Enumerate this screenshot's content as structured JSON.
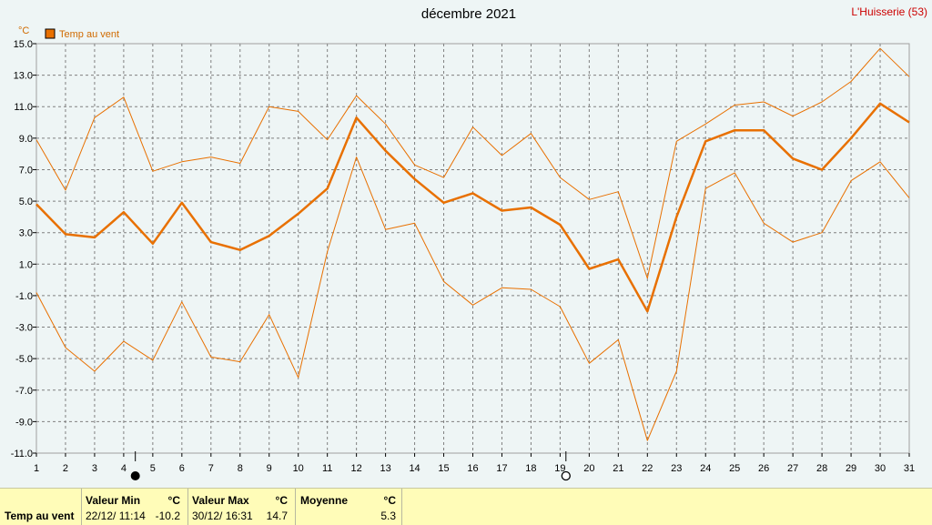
{
  "header": {
    "title": "décembre 2021",
    "location": "L'Huisserie (53)"
  },
  "chart_data": {
    "type": "line",
    "title": "décembre 2021",
    "unit": "°C",
    "legend": "Temp au vent",
    "x": [
      1,
      2,
      3,
      4,
      5,
      6,
      7,
      8,
      9,
      10,
      11,
      12,
      13,
      14,
      15,
      16,
      17,
      18,
      19,
      20,
      21,
      22,
      23,
      24,
      25,
      26,
      27,
      28,
      29,
      30,
      31
    ],
    "ylim": [
      -11.0,
      15.0
    ],
    "yticks": [
      "15.0",
      "13.0",
      "11.0",
      "9.0",
      "7.0",
      "5.0",
      "3.0",
      "1.0",
      "-1.0",
      "-3.0",
      "-5.0",
      "-7.0",
      "-9.0",
      "-11.0"
    ],
    "ytick_values": [
      15,
      13,
      11,
      9,
      7,
      5,
      3,
      1,
      -1,
      -3,
      -5,
      -7,
      -9,
      -11
    ],
    "grid": true,
    "series": [
      {
        "name": "Temp au vent",
        "role": "mean",
        "color": "#e87000",
        "values": [
          4.8,
          2.9,
          2.7,
          4.3,
          2.3,
          4.9,
          2.4,
          1.9,
          2.8,
          4.2,
          5.8,
          10.3,
          8.2,
          6.4,
          4.9,
          5.5,
          4.4,
          4.6,
          3.5,
          0.7,
          1.3,
          -2.0,
          4.0,
          8.8,
          9.5,
          9.5,
          7.7,
          7.0,
          9.0,
          11.2,
          10.0
        ]
      },
      {
        "role": "max",
        "color": "#e87000",
        "values": [
          8.9,
          5.7,
          10.3,
          11.6,
          6.9,
          7.5,
          7.8,
          7.4,
          11.0,
          10.7,
          8.9,
          11.7,
          9.9,
          7.3,
          6.5,
          9.7,
          7.9,
          9.3,
          6.5,
          5.1,
          5.6,
          0.1,
          8.8,
          9.9,
          11.1,
          11.3,
          10.4,
          11.3,
          12.6,
          14.7,
          12.9
        ]
      },
      {
        "role": "min",
        "color": "#e87000",
        "values": [
          -0.8,
          -4.3,
          -5.8,
          -3.9,
          -5.1,
          -1.4,
          -4.9,
          -5.2,
          -2.2,
          -6.2,
          1.8,
          7.8,
          3.2,
          3.6,
          -0.1,
          -1.6,
          -0.5,
          -0.6,
          -1.7,
          -5.3,
          -3.8,
          -10.2,
          -5.8,
          5.8,
          6.8,
          3.6,
          2.4,
          3.0,
          6.3,
          7.5,
          5.2
        ]
      }
    ],
    "moon_phases": [
      {
        "day": 4.4,
        "phase": "new"
      },
      {
        "day": 19.2,
        "phase": "full"
      }
    ]
  },
  "stats": {
    "row_label": "Temp au vent",
    "min": {
      "label": "Valeur Min",
      "unit": "°C",
      "date": "22/12/  11:14",
      "value": "-10.2"
    },
    "max": {
      "label": "Valeur Max",
      "unit": "°C",
      "date": "30/12/  16:31",
      "value": "14.7"
    },
    "mean": {
      "label": "Moyenne",
      "unit": "°C",
      "value": "5.3"
    }
  }
}
